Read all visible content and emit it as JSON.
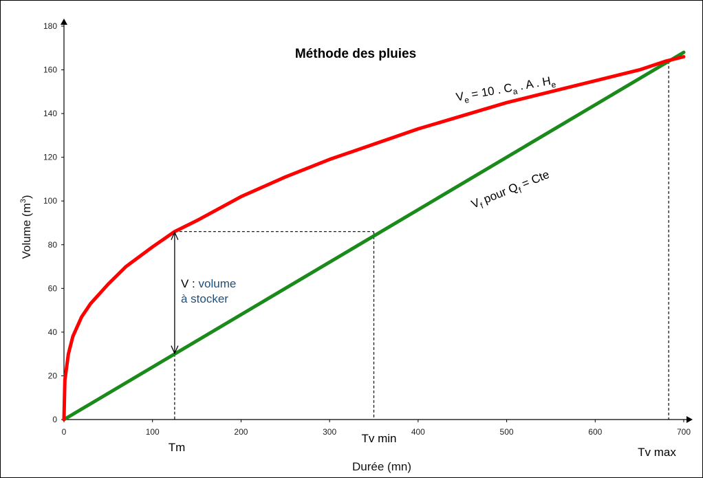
{
  "chart_data": {
    "type": "line",
    "title": "Méthode des pluies",
    "xlabel": "Durée (mn)",
    "ylabel_main": "Volume (m",
    "ylabel_sup": "3",
    "ylabel_end": ")",
    "xlim": [
      0,
      700
    ],
    "ylim": [
      0,
      180
    ],
    "x_ticks": [
      0,
      100,
      200,
      300,
      400,
      500,
      600,
      700
    ],
    "y_ticks": [
      0,
      20,
      40,
      60,
      80,
      100,
      120,
      140,
      160,
      180
    ],
    "grid": false,
    "series": [
      {
        "color": "#ff0000",
        "x": [
          0,
          1,
          5,
          10,
          20,
          30,
          50,
          70,
          100,
          125,
          150,
          200,
          250,
          300,
          350,
          400,
          450,
          500,
          550,
          600,
          650,
          680,
          700
        ],
        "y": [
          0,
          18,
          30,
          38,
          47,
          53,
          62,
          70,
          79,
          86,
          91,
          102,
          111,
          119,
          126,
          133,
          139,
          145,
          150,
          155,
          160,
          164,
          166
        ]
      },
      {
        "color": "#1a8a1a",
        "x": [
          0,
          700
        ],
        "y": [
          0,
          168
        ]
      }
    ],
    "annotations": {
      "ve_label": {
        "base": "V",
        "sub1": "e",
        "mid1": " = 10 . C",
        "sub2": "a",
        "mid2": " . A . H",
        "sub3": "e"
      },
      "vf_label": {
        "base": "V",
        "sub1": "f",
        "mid1": " pour  Q",
        "sub2": "f",
        "mid2": " = Cte"
      },
      "v_line1_prefix": "V : ",
      "v_line1_rest": "volume",
      "v_line2": "à stocker",
      "tm": "Tm",
      "tv_min": "Tv min",
      "tv_max": "Tv max"
    },
    "markers": {
      "tm_x": 125,
      "tm_y_top": 86,
      "tm_y_bottom": 30,
      "tv_min_x": 350,
      "tv_min_y": 86,
      "tv_max_x": 683,
      "tv_max_y": 164
    }
  }
}
